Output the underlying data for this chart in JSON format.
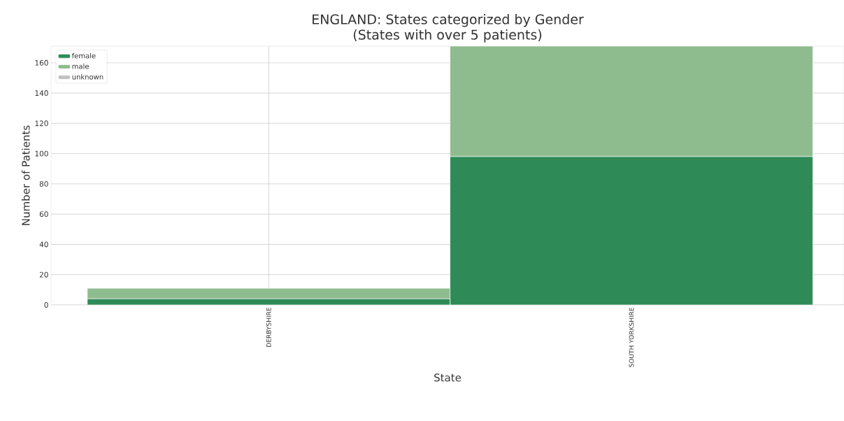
{
  "chart_data": {
    "type": "bar",
    "title": "ENGLAND: States categorized by Gender\n(States with over 5 patients)",
    "xlabel": "State",
    "ylabel": "Number of Patients",
    "categories": [
      "DERBYSHIRE",
      "SOUTH YORKSHIRE"
    ],
    "series": [
      {
        "name": "female",
        "color": "#2e8b57",
        "values": [
          4,
          98
        ]
      },
      {
        "name": "male",
        "color": "#8fbc8f",
        "values": [
          7,
          73
        ]
      },
      {
        "name": "unknown",
        "color": "#c0c0c0",
        "values": [
          0,
          0
        ]
      }
    ],
    "stacked": true,
    "ylim": [
      0,
      171
    ],
    "yticks": [
      0,
      20,
      40,
      60,
      80,
      100,
      120,
      140,
      160
    ],
    "grid": true,
    "legend": "top left"
  }
}
